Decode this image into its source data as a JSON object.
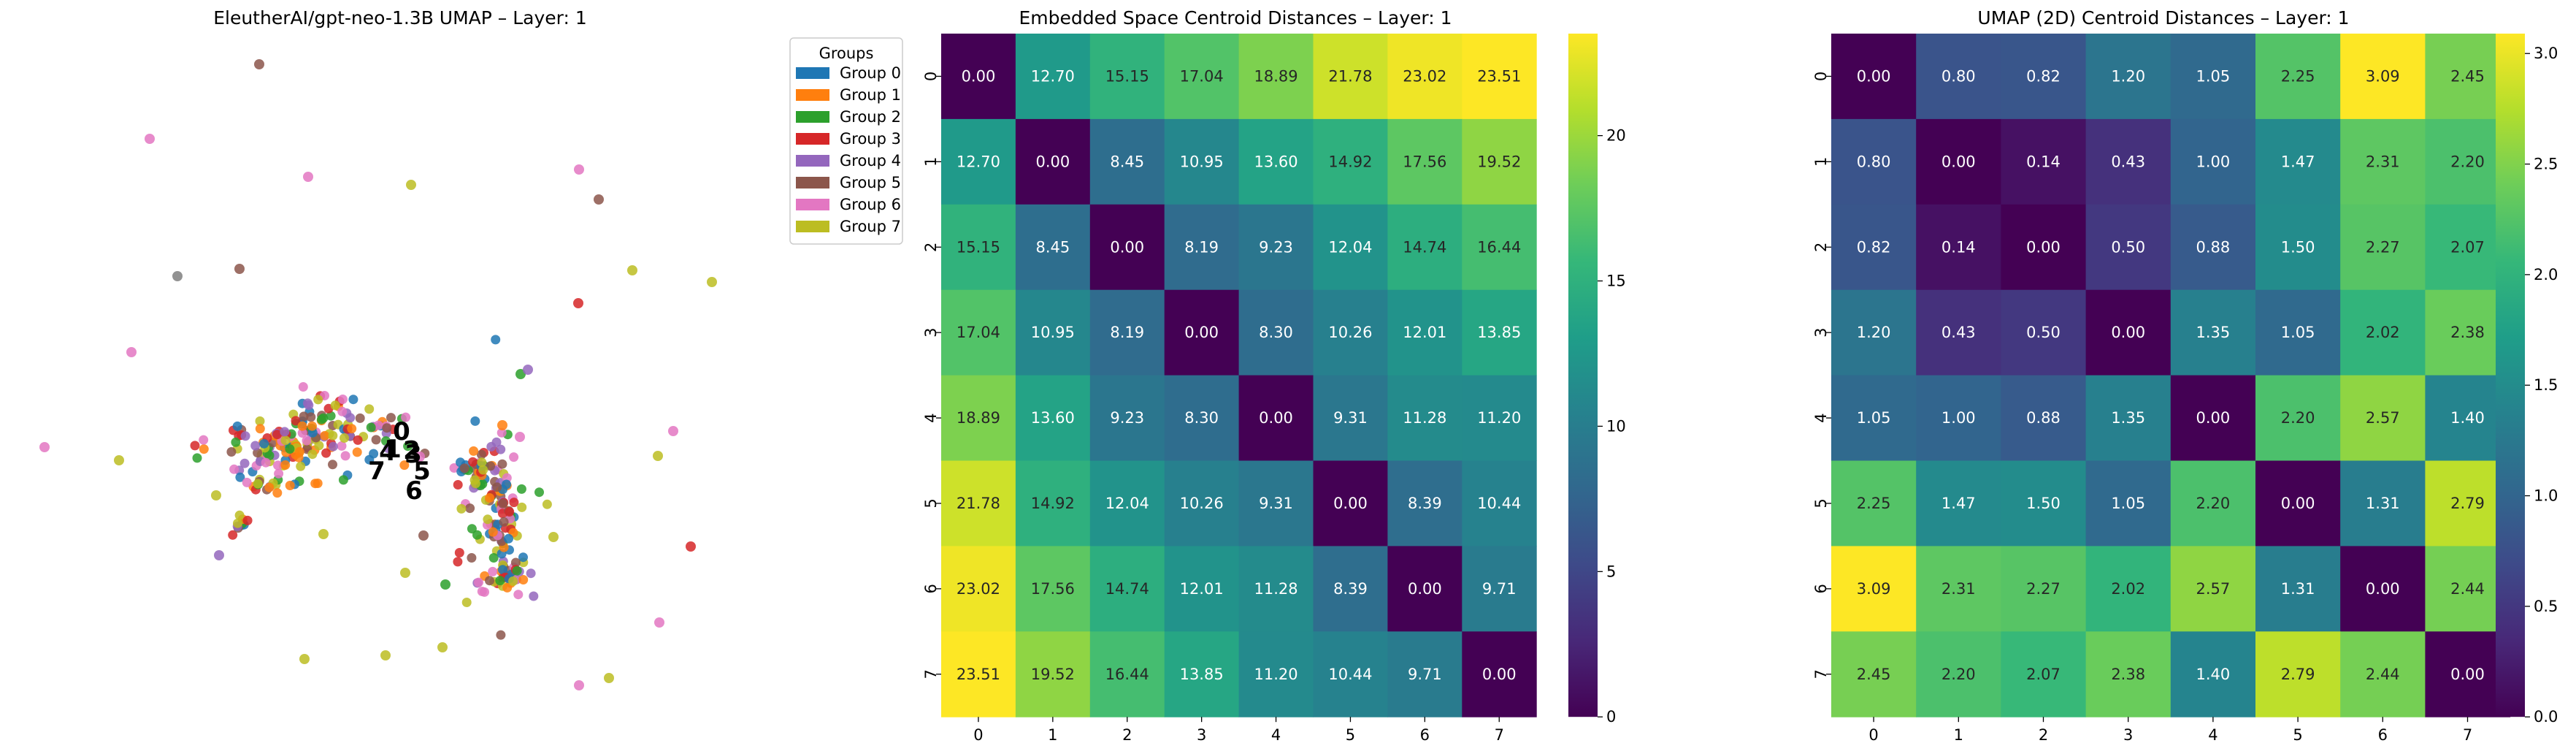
{
  "palette": [
    "#1f77b4",
    "#ff7f0e",
    "#2ca02c",
    "#d62728",
    "#9467bd",
    "#8c564b",
    "#e377c2",
    "#bcbd22",
    "#7f7f7f",
    "#17becf"
  ],
  "chart_data": [
    {
      "type": "scatter",
      "title": "EleutherAI/gpt-neo-1.3B UMAP – Layer: 1",
      "xlabel": "",
      "ylabel": "",
      "grid": false,
      "legend": {
        "title": "Groups",
        "placement": "outside-top-right",
        "entries": [
          "Group 0",
          "Group 1",
          "Group 2",
          "Group 3",
          "Group 4",
          "Group 5",
          "Group 6",
          "Group 7"
        ]
      },
      "centroid_labels": [
        "0",
        "1",
        "2",
        "3",
        "4",
        "5",
        "6",
        "7"
      ]
    },
    {
      "type": "heatmap",
      "title": "Embedded Space Centroid Distances – Layer: 1",
      "x_labels": [
        "0",
        "1",
        "2",
        "3",
        "4",
        "5",
        "6",
        "7"
      ],
      "y_labels": [
        "0",
        "1",
        "2",
        "3",
        "4",
        "5",
        "6",
        "7"
      ],
      "colormap": "viridis",
      "vmin": 0,
      "vmax": 23.51,
      "colorbar_ticks": [
        "0",
        "5",
        "10",
        "15",
        "20"
      ],
      "values": [
        [
          "0.00",
          "12.70",
          "15.15",
          "17.04",
          "18.89",
          "21.78",
          "23.02",
          "23.51"
        ],
        [
          "12.70",
          "0.00",
          "8.45",
          "10.95",
          "13.60",
          "14.92",
          "17.56",
          "19.52"
        ],
        [
          "15.15",
          "8.45",
          "0.00",
          "8.19",
          "9.23",
          "12.04",
          "14.74",
          "16.44"
        ],
        [
          "17.04",
          "10.95",
          "8.19",
          "0.00",
          "8.30",
          "10.26",
          "12.01",
          "13.85"
        ],
        [
          "18.89",
          "13.60",
          "9.23",
          "8.30",
          "0.00",
          "9.31",
          "11.28",
          "11.20"
        ],
        [
          "21.78",
          "14.92",
          "12.04",
          "10.26",
          "9.31",
          "0.00",
          "8.39",
          "10.44"
        ],
        [
          "23.02",
          "17.56",
          "14.74",
          "12.01",
          "11.28",
          "8.39",
          "0.00",
          "9.71"
        ],
        [
          "23.51",
          "19.52",
          "16.44",
          "13.85",
          "11.20",
          "10.44",
          "9.71",
          "0.00"
        ]
      ]
    },
    {
      "type": "heatmap",
      "title": "UMAP (2D) Centroid Distances – Layer: 1",
      "x_labels": [
        "0",
        "1",
        "2",
        "3",
        "4",
        "5",
        "6",
        "7"
      ],
      "y_labels": [
        "0",
        "1",
        "2",
        "3",
        "4",
        "5",
        "6",
        "7"
      ],
      "colormap": "viridis",
      "vmin": 0,
      "vmax": 3.09,
      "colorbar_ticks": [
        "0.0",
        "0.5",
        "1.0",
        "1.5",
        "2.0",
        "2.5",
        "3.0"
      ],
      "values": [
        [
          "0.00",
          "0.80",
          "0.82",
          "1.20",
          "1.05",
          "2.25",
          "3.09",
          "2.45"
        ],
        [
          "0.80",
          "0.00",
          "0.14",
          "0.43",
          "1.00",
          "1.47",
          "2.31",
          "2.20"
        ],
        [
          "0.82",
          "0.14",
          "0.00",
          "0.50",
          "0.88",
          "1.50",
          "2.27",
          "2.07"
        ],
        [
          "1.20",
          "0.43",
          "0.50",
          "0.00",
          "1.35",
          "1.05",
          "2.02",
          "2.38"
        ],
        [
          "1.05",
          "1.00",
          "0.88",
          "1.35",
          "0.00",
          "2.20",
          "2.57",
          "1.40"
        ],
        [
          "2.25",
          "1.47",
          "1.50",
          "1.05",
          "2.20",
          "0.00",
          "1.31",
          "2.79"
        ],
        [
          "3.09",
          "2.31",
          "2.27",
          "2.02",
          "2.57",
          "1.31",
          "0.00",
          "2.44"
        ],
        [
          "2.45",
          "2.20",
          "2.07",
          "2.38",
          "1.40",
          "2.79",
          "2.44",
          "0.00"
        ]
      ]
    }
  ]
}
